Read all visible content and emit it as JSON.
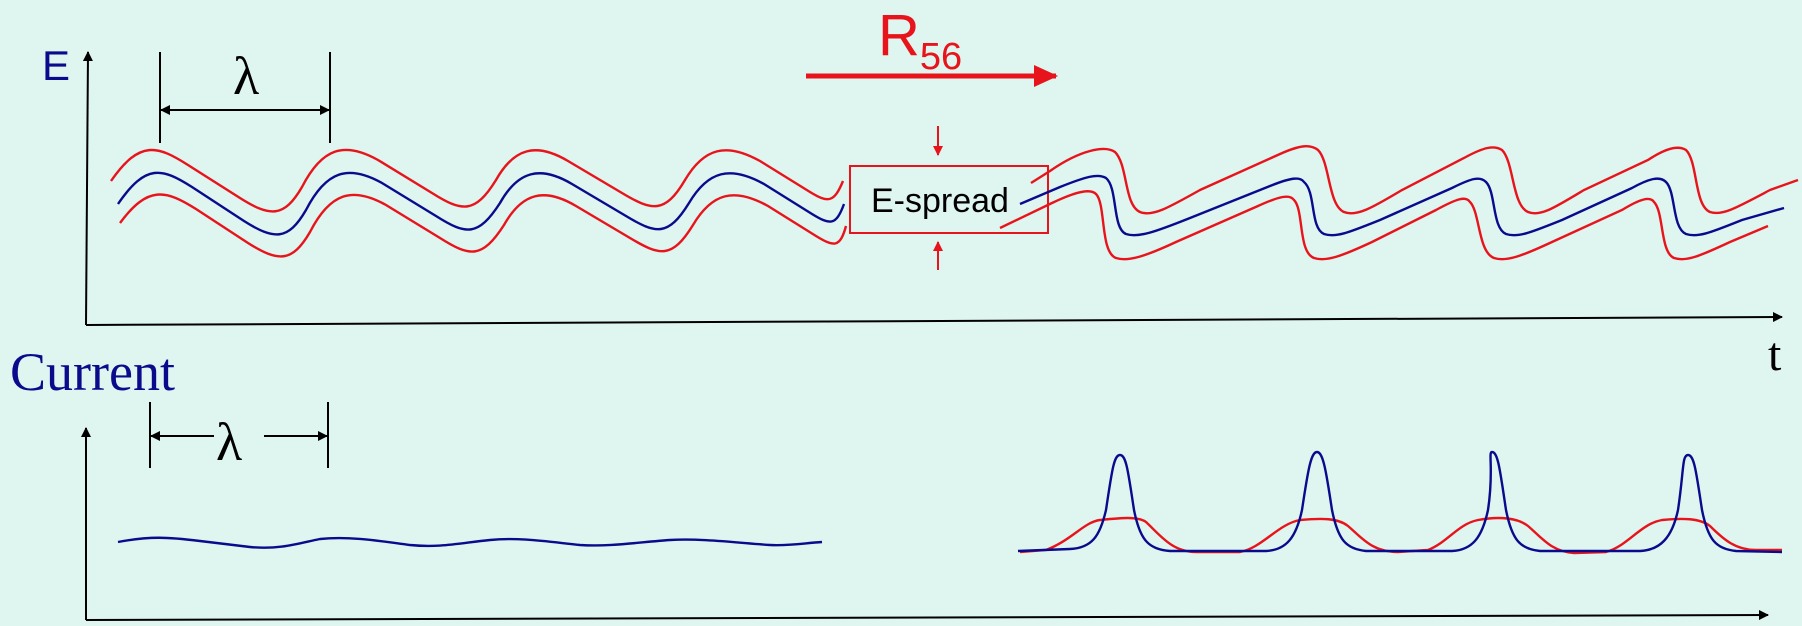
{
  "labels": {
    "energy_axis": "E",
    "time_axis": "t",
    "current_title": "Current",
    "wavelength_top": "λ",
    "wavelength_bottom": "λ",
    "r56_main": "R",
    "r56_sub": "56",
    "espread": "E-spread"
  },
  "colors": {
    "background": "#dff5f0",
    "red": "#e8141c",
    "blue": "#0a0a8c",
    "black": "#000000"
  }
}
